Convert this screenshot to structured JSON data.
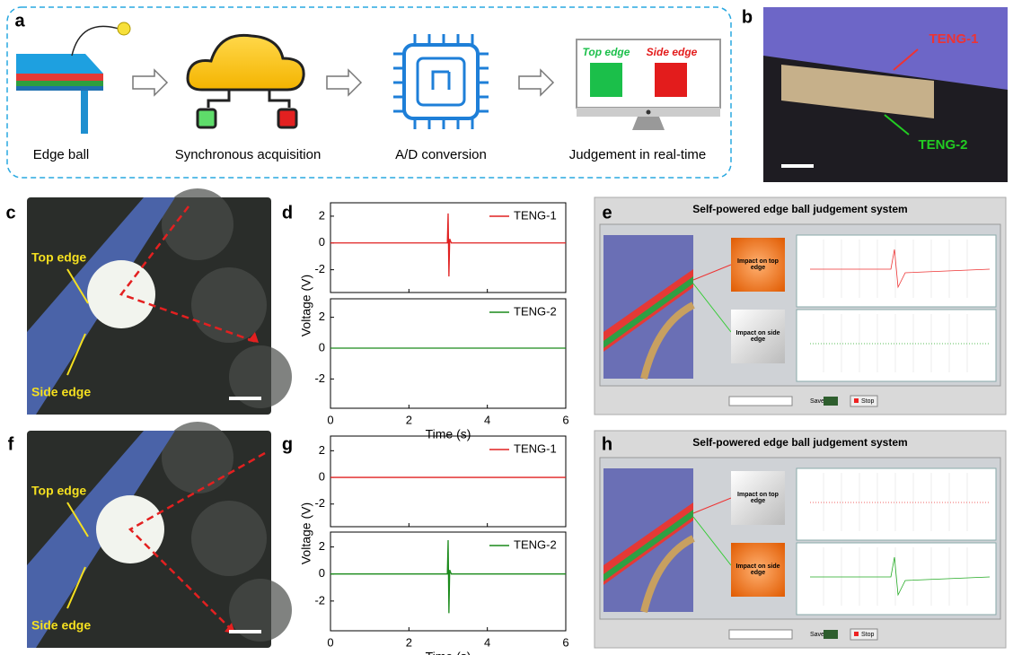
{
  "panel_labels": [
    "a",
    "b",
    "c",
    "d",
    "e",
    "f",
    "g",
    "h"
  ],
  "flow": {
    "steps": [
      "Edge ball",
      "Synchronous acquisition",
      "A/D conversion",
      "Judgement in real-time"
    ],
    "monitor": [
      "Top edge",
      "Side edge"
    ]
  },
  "photo_b": [
    "TENG-1",
    "TENG-2"
  ],
  "photo_c": [
    "Top edge",
    "Side edge"
  ],
  "photo_f": [
    "Top edge",
    "Side edge"
  ],
  "ui_e": {
    "title": "Self-powered edge ball judgement system",
    "buttons": [
      "Impact on top edge",
      "Impact on side edge"
    ],
    "save": "Save",
    "stop": "Stop"
  },
  "ui_h": {
    "title": "Self-powered edge ball judgement system",
    "buttons": [
      "Impact on top edge",
      "Impact on side edge"
    ],
    "save": "Save",
    "stop": "Stop"
  },
  "chart_data": [
    {
      "type": "line",
      "xlim": [
        0,
        6
      ],
      "xticks": [
        0,
        2,
        4,
        6
      ],
      "ylim": [
        -3.7,
        3
      ],
      "yticks": [
        -2,
        0,
        2
      ],
      "series": [
        {
          "name": "TENG-1",
          "color": "#e02020",
          "x": [
            0,
            2.98,
            3.0,
            3.02,
            3.04,
            3.08,
            6
          ],
          "values": [
            0,
            0,
            2.2,
            -2.5,
            0.3,
            0,
            0
          ]
        }
      ]
    },
    {
      "type": "line",
      "xlim": [
        0,
        6
      ],
      "xticks": [
        0,
        2,
        4,
        6
      ],
      "ylim": [
        -3.9,
        3.2
      ],
      "yticks": [
        -2,
        0,
        2
      ],
      "xlabel": "Time (s)",
      "ylabel": "Voltage (V)",
      "series": [
        {
          "name": "TENG-2",
          "color": "#1a8a1a",
          "x": [
            0,
            6
          ],
          "values": [
            0,
            0
          ]
        }
      ]
    },
    {
      "type": "line",
      "xlim": [
        0,
        6
      ],
      "xticks": [
        0,
        2,
        4,
        6
      ],
      "ylim": [
        -3.7,
        3.1
      ],
      "yticks": [
        -2,
        0,
        2
      ],
      "series": [
        {
          "name": "TENG-1",
          "color": "#e02020",
          "x": [
            0,
            6
          ],
          "values": [
            0,
            0
          ]
        }
      ]
    },
    {
      "type": "line",
      "xlim": [
        0,
        6
      ],
      "xticks": [
        0,
        2,
        4,
        6
      ],
      "ylim": [
        -4.2,
        3.1
      ],
      "yticks": [
        -2,
        0,
        2
      ],
      "xlabel": "Time (s)",
      "ylabel": "Voltage (V)",
      "series": [
        {
          "name": "TENG-2",
          "color": "#1a8a1a",
          "x": [
            0,
            2.98,
            3.0,
            3.02,
            3.04,
            3.08,
            6
          ],
          "values": [
            0,
            0,
            2.5,
            -2.9,
            0.3,
            0,
            0
          ]
        }
      ]
    }
  ]
}
